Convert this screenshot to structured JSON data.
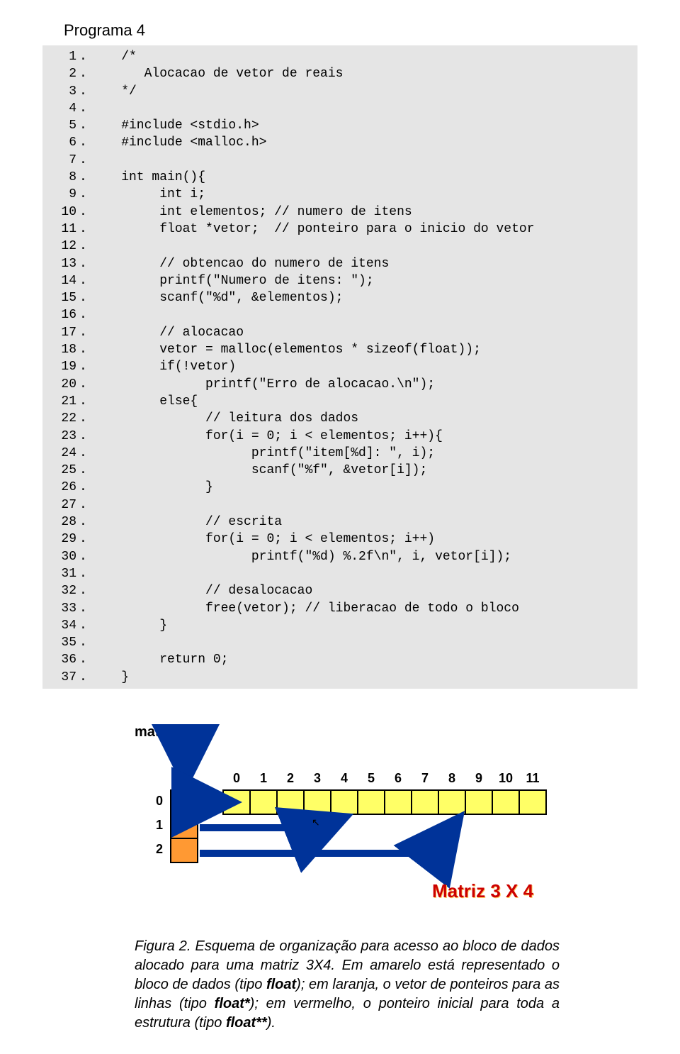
{
  "title": "Programa 4",
  "code_lines": [
    {
      "n": "1",
      "t": "    /*"
    },
    {
      "n": "2",
      "t": "       Alocacao de vetor de reais"
    },
    {
      "n": "3",
      "t": "    */"
    },
    {
      "n": "4",
      "t": ""
    },
    {
      "n": "5",
      "t": "    #include <stdio.h>"
    },
    {
      "n": "6",
      "t": "    #include <malloc.h>"
    },
    {
      "n": "7",
      "t": ""
    },
    {
      "n": "8",
      "t": "    int main(){"
    },
    {
      "n": "9",
      "t": "         int i;"
    },
    {
      "n": "10",
      "t": "         int elementos; // numero de itens"
    },
    {
      "n": "11",
      "t": "         float *vetor;  // ponteiro para o inicio do vetor"
    },
    {
      "n": "12",
      "t": ""
    },
    {
      "n": "13",
      "t": "         // obtencao do numero de itens"
    },
    {
      "n": "14",
      "t": "         printf(\"Numero de itens: \");"
    },
    {
      "n": "15",
      "t": "         scanf(\"%d\", &elementos);"
    },
    {
      "n": "16",
      "t": ""
    },
    {
      "n": "17",
      "t": "         // alocacao"
    },
    {
      "n": "18",
      "t": "         vetor = malloc(elementos * sizeof(float));"
    },
    {
      "n": "19",
      "t": "         if(!vetor)"
    },
    {
      "n": "20",
      "t": "               printf(\"Erro de alocacao.\\n\");"
    },
    {
      "n": "21",
      "t": "         else{"
    },
    {
      "n": "22",
      "t": "               // leitura dos dados"
    },
    {
      "n": "23",
      "t": "               for(i = 0; i < elementos; i++){"
    },
    {
      "n": "24",
      "t": "                     printf(\"item[%d]: \", i);"
    },
    {
      "n": "25",
      "t": "                     scanf(\"%f\", &vetor[i]);"
    },
    {
      "n": "26",
      "t": "               }"
    },
    {
      "n": "27",
      "t": ""
    },
    {
      "n": "28",
      "t": "               // escrita"
    },
    {
      "n": "29",
      "t": "               for(i = 0; i < elementos; i++)"
    },
    {
      "n": "30",
      "t": "                     printf(\"%d) %.2f\\n\", i, vetor[i]);"
    },
    {
      "n": "31",
      "t": ""
    },
    {
      "n": "32",
      "t": "               // desalocacao"
    },
    {
      "n": "33",
      "t": "               free(vetor); // liberacao de todo o bloco"
    },
    {
      "n": "34",
      "t": "         }"
    },
    {
      "n": "35",
      "t": ""
    },
    {
      "n": "36",
      "t": "         return 0;"
    },
    {
      "n": "37",
      "t": "    }"
    }
  ],
  "diagram": {
    "mat_label": "mat",
    "row_labels": [
      "0",
      "1",
      "2"
    ],
    "col_labels": [
      "0",
      "1",
      "2",
      "3",
      "4",
      "5",
      "6",
      "7",
      "8",
      "9",
      "10",
      "11"
    ],
    "matriz_text": "Matriz 3 X 4",
    "colors": {
      "red": "#ff3300",
      "orange": "#ff9933",
      "yellow": "#ffff66",
      "arrow": "#003399",
      "matriz_text": "#cc0000"
    }
  },
  "caption_parts": {
    "fig_label": "Figura 2. ",
    "text1": "Esquema de organização para acesso ao bloco de dados alocado para uma matriz 3X4. Em amarelo está representado o bloco de dados (tipo ",
    "b1": "float",
    "text2": "); em laranja, o vetor de ponteiros para as linhas (tipo ",
    "b2": "float*",
    "text3": "); em vermelho, o ponteiro inicial para toda a estrutura (tipo ",
    "b3": "float**",
    "text4": ")."
  }
}
